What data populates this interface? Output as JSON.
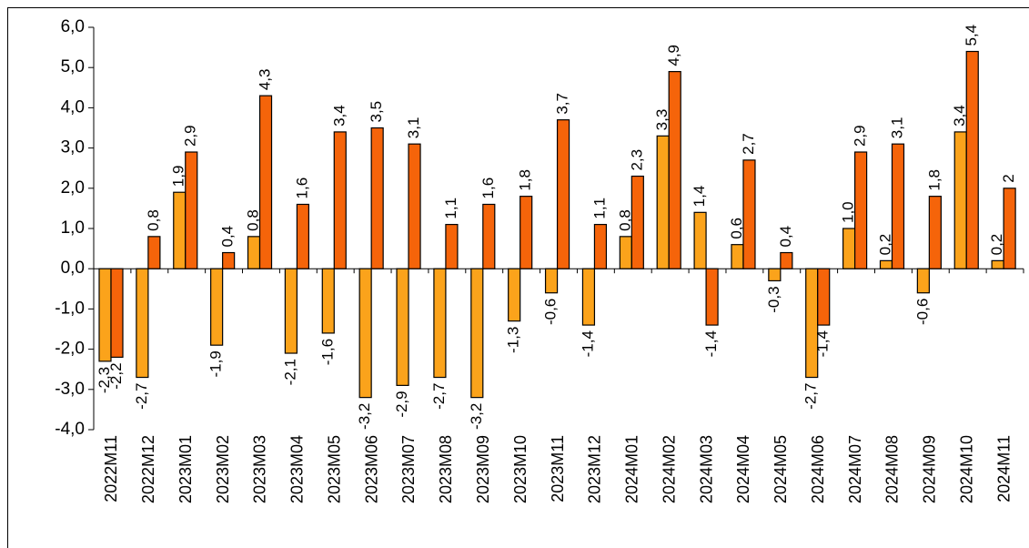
{
  "chart_data": {
    "type": "bar",
    "categories": [
      "2022M11",
      "2022M12",
      "2023M01",
      "2023M02",
      "2023M03",
      "2023M04",
      "2023M05",
      "2023M06",
      "2023M07",
      "2023M08",
      "2023M09",
      "2023M10",
      "2023M11",
      "2023M12",
      "2024M01",
      "2024M02",
      "2024M03",
      "2024M04",
      "2024M05",
      "2024M06",
      "2024M07",
      "2024M08",
      "2024M09",
      "2024M10",
      "2024M11"
    ],
    "series": [
      {
        "color": "#FBA31B",
        "values": [
          -2.3,
          -2.7,
          1.9,
          -1.9,
          0.8,
          -2.1,
          -1.6,
          -3.2,
          -2.9,
          -2.7,
          -3.2,
          -1.3,
          -0.6,
          -1.4,
          0.8,
          3.3,
          1.4,
          0.6,
          -0.3,
          -2.7,
          1.0,
          0.2,
          -0.6,
          3.4,
          0.2
        ],
        "value_labels": [
          "-2,3",
          "-2,7",
          "1,9",
          "-1,9",
          "0,8",
          "-2,1",
          "-1,6",
          "-3,2",
          "-2,9",
          "-2,7",
          "-3,2",
          "-1,3",
          "-0,6",
          "-1,4",
          "0,8",
          "3,3",
          "1,4",
          "0,6",
          "-0,3",
          "-2,7",
          "1,0",
          "0,2",
          "-0,6",
          "3,4",
          "0,2"
        ]
      },
      {
        "color": "#F5640A",
        "values": [
          -2.2,
          0.8,
          2.9,
          0.4,
          4.3,
          1.6,
          3.4,
          3.5,
          3.1,
          1.1,
          1.6,
          1.8,
          3.7,
          1.1,
          2.3,
          4.9,
          -1.4,
          2.7,
          0.4,
          -1.4,
          2.9,
          3.1,
          1.8,
          5.4,
          2
        ],
        "value_labels": [
          "-2,2",
          "0,8",
          "2,9",
          "0,4",
          "4,3",
          "1,6",
          "3,4",
          "3,5",
          "3,1",
          "1,1",
          "1,6",
          "1,8",
          "3,7",
          "1,1",
          "2,3",
          "4,9",
          "-1,4",
          "2,7",
          "0,4",
          "-1,4",
          "2,9",
          "3,1",
          "1,8",
          "5,4",
          "2"
        ]
      }
    ],
    "ylim": [
      -4,
      6
    ],
    "yticks": [
      {
        "value": -4,
        "label": "-4,0"
      },
      {
        "value": -3,
        "label": "-3,0"
      },
      {
        "value": -2,
        "label": "-2,0"
      },
      {
        "value": -1,
        "label": "-1,0"
      },
      {
        "value": 0,
        "label": "0,0"
      },
      {
        "value": 1,
        "label": "1,0"
      },
      {
        "value": 2,
        "label": "2,0"
      },
      {
        "value": 3,
        "label": "3,0"
      },
      {
        "value": 4,
        "label": "4,0"
      },
      {
        "value": 5,
        "label": "5,0"
      },
      {
        "value": 6,
        "label": "6,0"
      }
    ],
    "grid": false
  }
}
